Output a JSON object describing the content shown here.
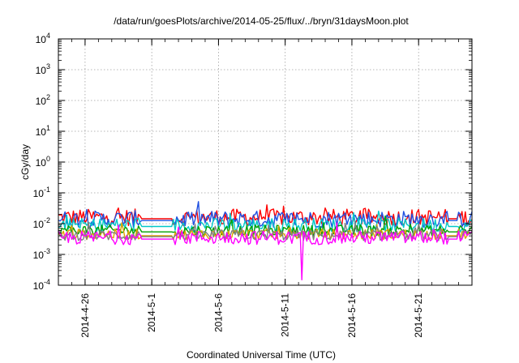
{
  "chart_data": {
    "type": "line",
    "title": "/data/run/goesPlots/archive/2014-05-25/flux/../bryn/31daysMoon.plot",
    "xlabel": "Coordinated Universal Time (UTC)",
    "ylabel": "cGy/day",
    "x_range": [
      "2014-04-24",
      "2014-05-25"
    ],
    "x_ticks": [
      "2014-4-26",
      "2014-5-1",
      "2014-5-6",
      "2014-5-11",
      "2014-5-16",
      "2014-5-21"
    ],
    "y_scale": "log",
    "ylim": [
      0.0001,
      10000
    ],
    "y_ticks": [
      {
        "base": "10",
        "exp": "-4"
      },
      {
        "base": "10",
        "exp": "-3"
      },
      {
        "base": "10",
        "exp": "-2"
      },
      {
        "base": "10",
        "exp": "-1"
      },
      {
        "base": "10",
        "exp": "0"
      },
      {
        "base": "10",
        "exp": "1"
      },
      {
        "base": "10",
        "exp": "2"
      },
      {
        "base": "10",
        "exp": "3"
      },
      {
        "base": "10",
        "exp": "4"
      }
    ],
    "grid": true,
    "data_gaps": [
      [
        "2014-04-30T06:00",
        "2014-05-02T12:00"
      ],
      [
        "2014-05-23T06:00",
        "2014-05-23T23:00"
      ]
    ],
    "spikes": [
      {
        "date": "2014-05-12T06:00",
        "value": 0.00015,
        "series_color": "#ff00ff"
      }
    ],
    "series": [
      {
        "color": "#ff0000",
        "baseline": 0.016,
        "amplitude": 0.55
      },
      {
        "color": "#2050e0",
        "baseline": 0.014,
        "amplitude": 0.55
      },
      {
        "color": "#00c8c8",
        "baseline": 0.009,
        "amplitude": 0.45
      },
      {
        "color": "#00a000",
        "baseline": 0.006,
        "amplitude": 0.35
      },
      {
        "color": "#e0a000",
        "baseline": 0.0045,
        "amplitude": 0.35
      },
      {
        "color": "#808080",
        "baseline": 0.0042,
        "amplitude": 0.35
      },
      {
        "color": "#ff00ff",
        "baseline": 0.0035,
        "amplitude": 0.45
      }
    ]
  }
}
